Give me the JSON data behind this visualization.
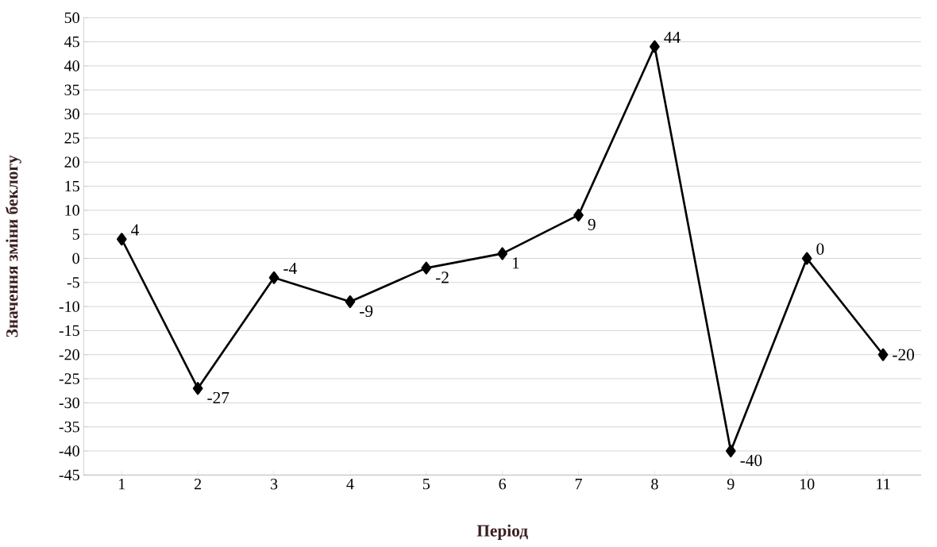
{
  "chart_data": {
    "type": "line",
    "xlabel": "Період",
    "ylabel": "Значення зміни беклогу",
    "categories": [
      "1",
      "2",
      "3",
      "4",
      "5",
      "6",
      "7",
      "8",
      "9",
      "10",
      "11"
    ],
    "values": [
      4,
      -27,
      -4,
      -9,
      -2,
      1,
      9,
      44,
      -40,
      0,
      -20
    ],
    "color": "#000000",
    "marker": "diamond",
    "line_style": "solid",
    "data_labels": true,
    "grid": "y",
    "ylim": [
      -45,
      50
    ],
    "yticks": [
      -45,
      -40,
      -35,
      -30,
      -25,
      -20,
      -15,
      -10,
      -5,
      0,
      5,
      10,
      15,
      20,
      25,
      30,
      35,
      40,
      45,
      50
    ]
  }
}
